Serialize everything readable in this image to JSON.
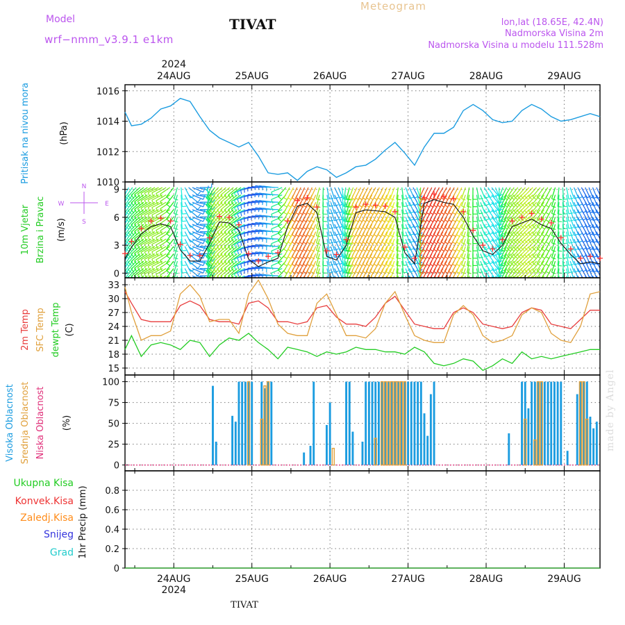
{
  "header": {
    "model_label": "Model",
    "model_name": "wrf−nmm_v3.9.1  e1km",
    "station": "TIVAT",
    "product": "Meteogram",
    "coords": "lon,lat (18.65E, 42.4N)",
    "elevation": "Nadmorska Visina 2m",
    "model_elevation": "Nadmorska Visina u modelu 111.528m",
    "watermark": "made by Angel"
  },
  "colors": {
    "pressure": "#1b9ce0",
    "temp2m": "#e83c3c",
    "sfc": "#e0a03c",
    "dewpt": "#22cc22",
    "high_cloud": "#1b9ce0",
    "mid_cloud": "#e0a03c",
    "low_cloud": "#e0307a",
    "total_precip": "#22cc22",
    "conv_precip": "#ee3333",
    "frz_precip": "#ff8c1a",
    "snow": "#3333dd",
    "hail": "#22cccc",
    "wind_label": "#22cc22",
    "compass": "#bb55ee"
  },
  "time_axis": {
    "days": [
      "24AUG",
      "25AUG",
      "26AUG",
      "27AUG",
      "28AUG",
      "29AUG"
    ],
    "year": "2024",
    "start_hour": 9,
    "end_hour": 155,
    "footer_station": "TIVAT"
  },
  "chart_data": [
    {
      "type": "line",
      "panel": "pressure",
      "ylabel": [
        "Pritisak na nivou mora",
        "(hPa)"
      ],
      "ylim": [
        1010,
        1016.4
      ],
      "yticks": [
        1010,
        1012,
        1014,
        1016
      ],
      "grid": true,
      "x": [
        9,
        11,
        14,
        17,
        20,
        23,
        26,
        29,
        32,
        35,
        38,
        41,
        44,
        47,
        50,
        53,
        56,
        59,
        62,
        65,
        68,
        71,
        74,
        77,
        80,
        83,
        86,
        89,
        92,
        95,
        98,
        101,
        104,
        107,
        110,
        113,
        116,
        119,
        122,
        125,
        128,
        131,
        134,
        137,
        140,
        143,
        146,
        149,
        152,
        155
      ],
      "series": [
        {
          "values": [
            1014.6,
            1013.7,
            1013.8,
            1014.2,
            1014.8,
            1015.0,
            1015.5,
            1015.3,
            1014.3,
            1013.4,
            1012.9,
            1012.6,
            1012.3,
            1012.6,
            1011.7,
            1010.6,
            1010.5,
            1010.6,
            1010.1,
            1010.7,
            1011.0,
            1010.8,
            1010.3,
            1010.6,
            1011.0,
            1011.1,
            1011.5,
            1012.1,
            1012.6,
            1011.9,
            1011.1,
            1012.3,
            1013.2,
            1013.2,
            1013.6,
            1014.7,
            1015.1,
            1014.7,
            1014.1,
            1013.9,
            1014.0,
            1014.7,
            1015.1,
            1014.8,
            1014.3,
            1014.0,
            1014.1,
            1014.3,
            1014.5,
            1014.3
          ]
        }
      ]
    },
    {
      "type": "line",
      "panel": "wind",
      "ylabel": [
        "10m Vjetar",
        "Brzina i Pravac",
        "(m/s)"
      ],
      "compass": [
        "N",
        "E",
        "S",
        "W"
      ],
      "ylim": [
        -0.5,
        9.8
      ],
      "yticks": [
        0,
        3,
        6,
        9
      ],
      "grid": true,
      "x": [
        9,
        11,
        14,
        17,
        20,
        23,
        26,
        29,
        32,
        35,
        38,
        41,
        44,
        47,
        50,
        53,
        56,
        59,
        62,
        65,
        68,
        71,
        74,
        77,
        80,
        83,
        86,
        89,
        92,
        95,
        98,
        101,
        104,
        107,
        110,
        113,
        116,
        119,
        122,
        125,
        128,
        131,
        134,
        137,
        140,
        143,
        146,
        149,
        152,
        155
      ],
      "series": [
        {
          "name": "speed",
          "values": [
            1.5,
            2.8,
            4.2,
            5.0,
            5.3,
            5.0,
            2.5,
            1.3,
            1.3,
            3.2,
            5.5,
            5.4,
            4.6,
            1.5,
            0.7,
            1.2,
            1.6,
            5.0,
            7.2,
            7.5,
            6.5,
            1.8,
            1.4,
            3.0,
            6.5,
            6.8,
            6.7,
            6.6,
            6.0,
            2.2,
            1.0,
            7.5,
            7.9,
            7.6,
            7.4,
            6.0,
            4.0,
            2.4,
            2.0,
            3.0,
            5.0,
            5.4,
            5.8,
            5.2,
            4.8,
            3.2,
            2.0,
            1.0,
            1.2,
            1.0
          ]
        }
      ],
      "direction_deg": [
        200,
        215,
        230,
        240,
        245,
        235,
        180,
        120,
        90,
        200,
        225,
        230,
        230,
        250,
        270,
        280,
        275,
        210,
        205,
        205,
        205,
        170,
        150,
        190,
        205,
        208,
        210,
        205,
        200,
        160,
        150,
        205,
        208,
        210,
        210,
        205,
        180,
        150,
        140,
        200,
        215,
        220,
        225,
        220,
        210,
        180,
        160,
        150,
        160,
        150
      ]
    },
    {
      "type": "line",
      "panel": "temperature",
      "ylabel": [
        "2m Temp",
        "SFC Temp",
        "dewpt Temp",
        "(C)"
      ],
      "ylim": [
        13.5,
        34.5
      ],
      "yticks": [
        15,
        18,
        21,
        24,
        27,
        30,
        33
      ],
      "grid": true,
      "x": [
        9,
        11,
        14,
        17,
        20,
        23,
        26,
        29,
        32,
        35,
        38,
        41,
        44,
        47,
        50,
        53,
        56,
        59,
        62,
        65,
        68,
        71,
        74,
        77,
        80,
        83,
        86,
        89,
        92,
        95,
        98,
        101,
        104,
        107,
        110,
        113,
        116,
        119,
        122,
        125,
        128,
        131,
        134,
        137,
        140,
        143,
        146,
        149,
        152,
        155
      ],
      "series": [
        {
          "name": "2m Temp",
          "values": [
            31.5,
            29.0,
            25.5,
            25.0,
            25.0,
            25.0,
            28.5,
            29.5,
            28.5,
            25.5,
            25.0,
            25.0,
            24.5,
            29.0,
            29.5,
            28.0,
            25.0,
            25.0,
            24.5,
            25.0,
            28.0,
            28.5,
            26.0,
            24.5,
            24.5,
            24.0,
            26.0,
            29.0,
            30.5,
            27.5,
            24.5,
            24.0,
            23.5,
            23.5,
            27.0,
            28.0,
            27.0,
            24.5,
            24.0,
            23.5,
            24.0,
            27.0,
            28.0,
            27.5,
            24.5,
            24.0,
            23.5,
            25.5,
            27.5,
            27.5
          ]
        },
        {
          "name": "SFC Temp",
          "values": [
            32.5,
            27.0,
            21.0,
            22.0,
            22.0,
            23.0,
            31.0,
            33.0,
            30.5,
            25.0,
            25.5,
            25.5,
            22.5,
            31.0,
            34.0,
            30.0,
            24.5,
            22.5,
            22.0,
            22.0,
            29.0,
            31.0,
            26.5,
            22.0,
            22.0,
            21.5,
            23.5,
            29.0,
            31.5,
            26.5,
            22.0,
            21.0,
            20.5,
            20.5,
            26.5,
            28.5,
            26.5,
            22.0,
            20.5,
            21.0,
            22.0,
            26.5,
            28.0,
            27.0,
            22.5,
            21.0,
            20.5,
            24.0,
            31.0,
            31.5
          ]
        },
        {
          "name": "dewpt Temp",
          "values": [
            19.0,
            22.0,
            17.5,
            20.0,
            20.5,
            20.0,
            19.0,
            21.0,
            20.5,
            17.5,
            20.0,
            21.5,
            21.0,
            22.5,
            20.5,
            19.0,
            17.0,
            19.5,
            19.0,
            18.5,
            17.5,
            18.5,
            18.0,
            18.5,
            19.5,
            19.0,
            19.0,
            18.5,
            18.5,
            18.0,
            19.5,
            18.5,
            16.0,
            15.5,
            16.0,
            17.0,
            16.5,
            14.5,
            15.5,
            17.0,
            16.0,
            18.5,
            17.0,
            17.5,
            17.0,
            17.5,
            18.0,
            18.5,
            19.0,
            19.0
          ]
        }
      ]
    },
    {
      "type": "bar",
      "panel": "clouds",
      "ylabel": [
        "Visoka Oblacnost",
        "Srednja Oblacnost",
        "Niska Oblacnost",
        "(%)"
      ],
      "ylim": [
        -7,
        108
      ],
      "yticks": [
        0,
        25,
        50,
        75,
        100
      ],
      "grid": true,
      "high_cloud": [
        [
          36,
          95
        ],
        [
          37,
          28
        ],
        [
          42,
          59
        ],
        [
          43,
          52
        ],
        [
          44,
          100
        ],
        [
          45,
          100
        ],
        [
          46,
          100
        ],
        [
          47,
          100
        ],
        [
          48,
          100
        ],
        [
          51,
          100
        ],
        [
          52,
          92
        ],
        [
          53,
          100
        ],
        [
          54,
          100
        ],
        [
          64,
          15
        ],
        [
          66,
          23
        ],
        [
          67,
          100
        ],
        [
          71,
          48
        ],
        [
          72,
          75
        ],
        [
          77,
          100
        ],
        [
          78,
          100
        ],
        [
          79,
          40
        ],
        [
          82,
          28
        ],
        [
          83,
          100
        ],
        [
          84,
          100
        ],
        [
          85,
          100
        ],
        [
          86,
          100
        ],
        [
          87,
          100
        ],
        [
          88,
          100
        ],
        [
          89,
          100
        ],
        [
          90,
          100
        ],
        [
          91,
          100
        ],
        [
          92,
          100
        ],
        [
          93,
          100
        ],
        [
          94,
          100
        ],
        [
          95,
          100
        ],
        [
          96,
          100
        ],
        [
          97,
          100
        ],
        [
          98,
          100
        ],
        [
          99,
          100
        ],
        [
          100,
          100
        ],
        [
          101,
          62
        ],
        [
          102,
          35
        ],
        [
          103,
          85
        ],
        [
          104,
          100
        ],
        [
          127,
          38
        ],
        [
          131,
          100
        ],
        [
          132,
          100
        ],
        [
          133,
          68
        ],
        [
          134,
          100
        ],
        [
          135,
          100
        ],
        [
          136,
          100
        ],
        [
          137,
          100
        ],
        [
          138,
          100
        ],
        [
          139,
          100
        ],
        [
          140,
          100
        ],
        [
          141,
          100
        ],
        [
          142,
          100
        ],
        [
          143,
          100
        ],
        [
          145,
          17
        ],
        [
          148,
          85
        ],
        [
          149,
          100
        ],
        [
          150,
          100
        ],
        [
          151,
          100
        ],
        [
          152,
          58
        ],
        [
          153,
          44
        ],
        [
          154,
          52
        ]
      ],
      "mid_cloud": [
        [
          47,
          100
        ],
        [
          51,
          55
        ],
        [
          52,
          95
        ],
        [
          53,
          100
        ],
        [
          73,
          20
        ],
        [
          86,
          32
        ],
        [
          88,
          100
        ],
        [
          89,
          100
        ],
        [
          90,
          100
        ],
        [
          91,
          100
        ],
        [
          92,
          100
        ],
        [
          93,
          100
        ],
        [
          94,
          100
        ],
        [
          95,
          100
        ],
        [
          132,
          55
        ],
        [
          135,
          30
        ],
        [
          136,
          100
        ],
        [
          137,
          100
        ],
        [
          149,
          100
        ],
        [
          150,
          100
        ],
        [
          151,
          55
        ]
      ],
      "low_cloud": []
    },
    {
      "type": "bar",
      "panel": "precipitation",
      "legend": [
        "Ukupna  Kisa",
        "Konvek.Kisa",
        "Zaledj.Kisa",
        "Snijeg",
        "Grad"
      ],
      "ylabel": [
        "1hr Precip (mm)"
      ],
      "ylim": [
        0,
        1
      ],
      "yticks": [
        0,
        0.2,
        0.4,
        0.6,
        0.8
      ],
      "grid": true,
      "values": []
    }
  ]
}
